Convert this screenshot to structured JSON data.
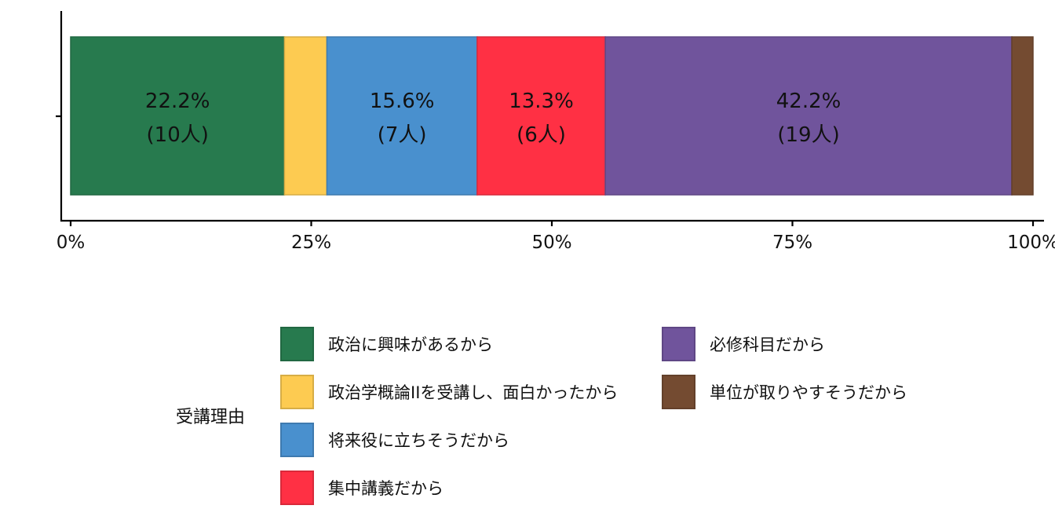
{
  "chart_data": {
    "type": "bar",
    "orientation": "horizontal",
    "stacked": true,
    "xlim": [
      0,
      100
    ],
    "x_ticks": [
      "0%",
      "25%",
      "50%",
      "75%",
      "100%"
    ],
    "grid": false,
    "legend_position": "bottom",
    "legend_title": "受講理由",
    "series": [
      {
        "name": "政治に興味があるから",
        "percent": 22.2,
        "count": 10,
        "color": "#277A4E",
        "label": [
          "22.2%",
          "(10人)"
        ]
      },
      {
        "name": "政治学概論IIを受講し、面白かったから",
        "percent": 4.4,
        "count": 2,
        "color": "#FDCB51",
        "label": []
      },
      {
        "name": "将来役に立ちそうだから",
        "percent": 15.6,
        "count": 7,
        "color": "#4990CE",
        "label": [
          "15.6%",
          "(7人)"
        ]
      },
      {
        "name": "集中講義だから",
        "percent": 13.3,
        "count": 6,
        "color": "#FF3044",
        "label": [
          "13.3%",
          "(6人)"
        ]
      },
      {
        "name": "必修科目だから",
        "percent": 42.2,
        "count": 19,
        "color": "#70549C",
        "label": [
          "42.2%",
          "(19人)"
        ]
      },
      {
        "name": "単位が取りやすそうだから",
        "percent": 2.2,
        "count": 1,
        "color": "#744B31",
        "label": []
      }
    ]
  }
}
